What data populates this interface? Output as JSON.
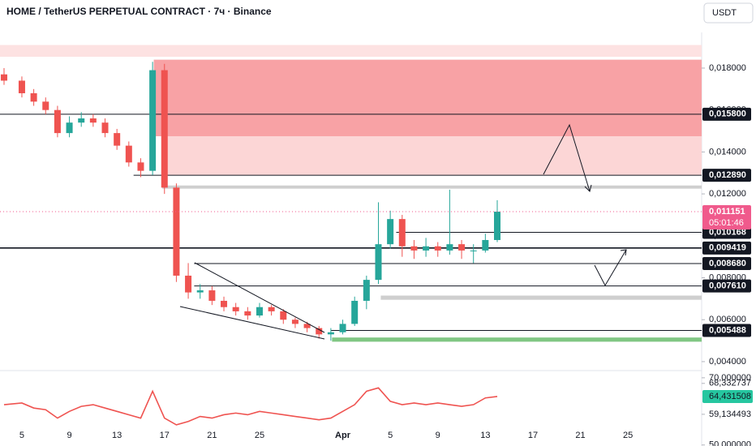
{
  "header": {
    "title": "HOME / TetherUS PERPETUAL CONTRACT · 7ч · Binance",
    "currency": "USDT"
  },
  "chart_data": [
    {
      "type": "candlestick",
      "x": [
        -1.5,
        0,
        1,
        2,
        3,
        4,
        5,
        6,
        7,
        8,
        9,
        10,
        11,
        12,
        13,
        14,
        15,
        16,
        17,
        18,
        19,
        20,
        21,
        22,
        23,
        24,
        25,
        26,
        27,
        28,
        29,
        30,
        31,
        32,
        33,
        34,
        35,
        36,
        37,
        38,
        39,
        40
      ],
      "open": [
        0.0177,
        0.0174,
        0.0168,
        0.0164,
        0.016,
        0.0149,
        0.0154,
        0.0156,
        0.0154,
        0.0149,
        0.0143,
        0.0135,
        0.0131,
        0.0179,
        0.0123,
        0.0081,
        0.0073,
        0.0074,
        0.0069,
        0.0066,
        0.0064,
        0.0062,
        0.0066,
        0.0064,
        0.006,
        0.0058,
        0.0056,
        0.0053,
        0.0054,
        0.0058,
        0.0069,
        0.0079,
        0.0096,
        0.0108,
        0.0095,
        0.0093,
        0.0095,
        0.0093,
        0.0096,
        0.0093,
        0.0093,
        0.0098
      ],
      "high": [
        0.018,
        0.0176,
        0.017,
        0.0166,
        0.0162,
        0.0157,
        0.0159,
        0.0158,
        0.0156,
        0.0151,
        0.0145,
        0.0137,
        0.0183,
        0.0182,
        0.0125,
        0.0087,
        0.0077,
        0.0076,
        0.0071,
        0.0068,
        0.0066,
        0.0068,
        0.0067,
        0.0065,
        0.0061,
        0.0059,
        0.0057,
        0.0056,
        0.006,
        0.0071,
        0.0081,
        0.0116,
        0.0112,
        0.011,
        0.0098,
        0.0099,
        0.0097,
        0.0122,
        0.0098,
        0.0096,
        0.0101,
        0.0117
      ],
      "low": [
        0.0172,
        0.0166,
        0.0162,
        0.0158,
        0.0147,
        0.0147,
        0.0152,
        0.0152,
        0.0147,
        0.0141,
        0.0133,
        0.0128,
        0.0129,
        0.012,
        0.0078,
        0.007,
        0.007,
        0.0067,
        0.0064,
        0.0062,
        0.006,
        0.0061,
        0.0062,
        0.0058,
        0.0056,
        0.0054,
        0.0051,
        0.005,
        0.0053,
        0.0057,
        0.0065,
        0.0077,
        0.0094,
        0.009,
        0.0089,
        0.009,
        0.009,
        0.0091,
        0.0089,
        0.0087,
        0.0092,
        0.0097
      ],
      "close": [
        0.0174,
        0.0168,
        0.0164,
        0.016,
        0.0149,
        0.0154,
        0.0156,
        0.0154,
        0.0149,
        0.0143,
        0.0135,
        0.0131,
        0.0179,
        0.0123,
        0.0081,
        0.0073,
        0.0074,
        0.0069,
        0.0066,
        0.0064,
        0.0062,
        0.0066,
        0.0064,
        0.006,
        0.0058,
        0.0056,
        0.0053,
        0.0054,
        0.0058,
        0.0069,
        0.0079,
        0.0096,
        0.0108,
        0.0095,
        0.0093,
        0.0095,
        0.0093,
        0.0096,
        0.0093,
        0.0093,
        0.0098,
        0.011151
      ],
      "up_color": "#26a69a",
      "down_color": "#ef5350",
      "xlim": [
        -1.84,
        57.2
      ],
      "ylim": [
        0.00365,
        0.01912
      ],
      "xticks": [
        {
          "value": 0,
          "label": "5"
        },
        {
          "value": 4,
          "label": "9"
        },
        {
          "value": 8,
          "label": "13"
        },
        {
          "value": 12,
          "label": "17"
        },
        {
          "value": 16,
          "label": "21"
        },
        {
          "value": 20,
          "label": "25"
        },
        {
          "value": 27,
          "label": "Apr"
        },
        {
          "value": 31,
          "label": "5"
        },
        {
          "value": 35,
          "label": "9"
        },
        {
          "value": 39,
          "label": "13"
        },
        {
          "value": 43,
          "label": "17"
        },
        {
          "value": 47,
          "label": "21"
        },
        {
          "value": 51,
          "label": "25"
        }
      ],
      "yticks": [
        {
          "value": 0.004,
          "label": "0,004000"
        },
        {
          "value": 0.006,
          "label": "0,006000"
        },
        {
          "value": 0.008,
          "label": "0,008000"
        },
        {
          "value": 0.01,
          "label": "0,010000"
        },
        {
          "value": 0.012,
          "label": "0,012000"
        },
        {
          "value": 0.014,
          "label": "0,014000"
        },
        {
          "value": 0.016,
          "label": "0,016000"
        },
        {
          "value": 0.018,
          "label": "0,018000"
        }
      ],
      "zones": [
        {
          "from": -1.84,
          "low": 0.01854,
          "high": 0.0191,
          "color": "#fde2e2"
        },
        {
          "from": 11.1,
          "low": 0.01475,
          "high": 0.0184,
          "color": "#f8a2a5"
        },
        {
          "from": 11.8,
          "low": 0.0129,
          "high": 0.01475,
          "color": "#fcd6d6"
        },
        {
          "from": 11.8,
          "low": 0.01225,
          "high": 0.0124,
          "color": "#cfcfcf"
        },
        {
          "from": 30.2,
          "low": 0.00695,
          "high": 0.00715,
          "color": "#cfcfcf"
        },
        {
          "from": 26.1,
          "low": 0.00495,
          "high": 0.00515,
          "color": "#81c784"
        }
      ],
      "levels": [
        {
          "value": 0.0158,
          "label": "0,015800",
          "from": -1.84
        },
        {
          "value": 0.01289,
          "label": "0,012890",
          "from": 9.4
        },
        {
          "value": 0.010168,
          "label": "0,010168",
          "from": 31.5
        },
        {
          "value": 0.009419,
          "label": "0,009419",
          "from": -1.84
        },
        {
          "value": 0.00868,
          "label": "0,008680",
          "from": 14.5
        },
        {
          "value": 0.00761,
          "label": "0,007610",
          "from": 14.5
        },
        {
          "value": 0.005488,
          "label": "0,005488",
          "from": 26
        }
      ],
      "last_price": {
        "value": 0.011151,
        "label": "0,011151",
        "countdown": "05:01:46",
        "color": "#f05a8c"
      }
    },
    {
      "type": "line",
      "x": [
        -1.5,
        0,
        1,
        2,
        3,
        4,
        5,
        6,
        7,
        8,
        9,
        10,
        11,
        12,
        13,
        14,
        15,
        16,
        17,
        18,
        19,
        20,
        21,
        22,
        23,
        24,
        25,
        26,
        27,
        28,
        29,
        30,
        31,
        32,
        33,
        34,
        35,
        36,
        37,
        38,
        39,
        40
      ],
      "values": [
        62,
        62.5,
        61,
        60.5,
        58,
        60,
        61.5,
        62,
        61,
        60,
        59,
        58,
        66,
        58,
        56,
        57,
        58.5,
        58,
        59,
        59.5,
        59,
        60,
        59.5,
        59,
        58.5,
        58,
        57.5,
        58,
        60,
        62,
        66,
        67,
        63,
        62,
        62.5,
        62,
        62.5,
        62,
        61.5,
        62,
        64,
        64.431508
      ],
      "color": "#ef5350",
      "ylim": [
        49.7,
        71.9
      ],
      "yticks": [
        {
          "value": 50,
          "label": "50,000000"
        },
        {
          "value": 59.134493,
          "label": "59,134493"
        },
        {
          "value": 68.332737,
          "label": "68,332737"
        },
        {
          "value": 70,
          "label": "70,000000"
        }
      ],
      "current": {
        "value": 64.431508,
        "label": "64,431508",
        "color": "#26c6a0"
      }
    }
  ]
}
